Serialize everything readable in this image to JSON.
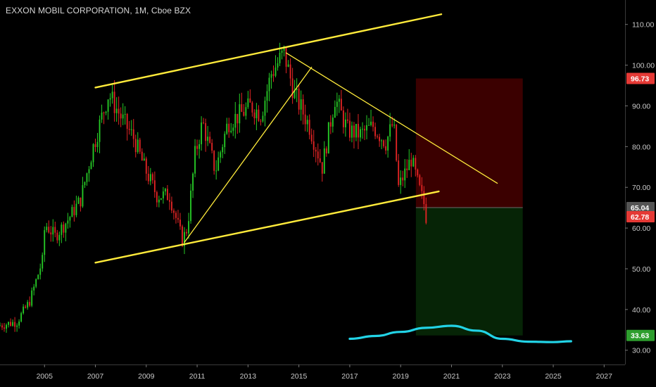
{
  "header": {
    "symbol_title": "EXXON MOBIL CORPORATION, 1M, Cboe BZX"
  },
  "chart_data": {
    "type": "candlestick",
    "title": "EXXON MOBIL CORPORATION, 1M, Cboe BZX",
    "xlabel": "",
    "ylabel": "",
    "x_ticks": [
      "2005",
      "2007",
      "2009",
      "2011",
      "2013",
      "2015",
      "2017",
      "2019",
      "2021",
      "2023",
      "2025",
      "2027"
    ],
    "y_ticks": [
      "30.00",
      "40.00",
      "50.00",
      "60.00",
      "70.00",
      "80.00",
      "90.00",
      "100.00",
      "110.00"
    ],
    "xlim": [
      2003.25,
      2027.6
    ],
    "ylim": [
      26.5,
      116
    ],
    "grid": false,
    "legend": "none",
    "price_path": [
      [
        2003.25,
        36.0
      ],
      [
        2004.0,
        37.0
      ],
      [
        2004.5,
        42.0
      ],
      [
        2005.0,
        52.0
      ],
      [
        2005.1,
        61.0
      ],
      [
        2005.5,
        58.0
      ],
      [
        2006.0,
        62.0
      ],
      [
        2006.5,
        67.0
      ],
      [
        2007.0,
        80.0
      ],
      [
        2007.6,
        93.0
      ],
      [
        2008.2,
        86.0
      ],
      [
        2008.6,
        82.0
      ],
      [
        2009.0,
        75.0
      ],
      [
        2009.5,
        68.0
      ],
      [
        2010.0,
        68.0
      ],
      [
        2010.5,
        57.0
      ],
      [
        2010.7,
        60.0
      ],
      [
        2011.0,
        78.0
      ],
      [
        2011.3,
        86.0
      ],
      [
        2011.8,
        74.0
      ],
      [
        2012.3,
        86.0
      ],
      [
        2012.8,
        88.0
      ],
      [
        2013.2,
        90.0
      ],
      [
        2013.6,
        88.0
      ],
      [
        2014.0,
        98.0
      ],
      [
        2014.5,
        103.0
      ],
      [
        2014.9,
        93.0
      ],
      [
        2015.5,
        85.0
      ],
      [
        2016.0,
        75.0
      ],
      [
        2016.5,
        92.0
      ],
      [
        2017.0,
        84.0
      ],
      [
        2017.5,
        83.0
      ],
      [
        2018.0,
        85.0
      ],
      [
        2018.5,
        81.0
      ],
      [
        2018.8,
        86.0
      ],
      [
        2019.0,
        70.0
      ],
      [
        2019.5,
        77.0
      ],
      [
        2019.8,
        70.0
      ],
      [
        2020.0,
        66.0
      ],
      [
        2020.05,
        62.78
      ]
    ],
    "trendlines": [
      {
        "name": "channel-upper",
        "color": "#ffeb3b",
        "width": 2.4,
        "points": [
          [
            2007.0,
            94.5
          ],
          [
            2020.6,
            112.5
          ]
        ]
      },
      {
        "name": "channel-lower",
        "color": "#ffeb3b",
        "width": 2.4,
        "points": [
          [
            2007.0,
            51.5
          ],
          [
            2020.5,
            69.0
          ]
        ]
      },
      {
        "name": "descending-resistance",
        "color": "#ffeb3b",
        "width": 1.3,
        "points": [
          [
            2014.5,
            103.0
          ],
          [
            2022.8,
            71.0
          ]
        ]
      },
      {
        "name": "rising-support",
        "color": "#ffeb3b",
        "width": 1.3,
        "points": [
          [
            2010.5,
            56.5
          ],
          [
            2015.5,
            99.5
          ]
        ]
      }
    ],
    "position": {
      "entry": 65.04,
      "stop": 96.73,
      "target": 33.63,
      "start_x": 2019.6,
      "end_x": 2023.8,
      "risk_color": "#3b0000",
      "reward_color": "#062406"
    },
    "indicator_curve": {
      "color": "#22d3e6",
      "points": [
        [
          2017.0,
          32.8
        ],
        [
          2018.0,
          33.5
        ],
        [
          2019.0,
          34.5
        ],
        [
          2020.0,
          35.5
        ],
        [
          2021.0,
          36.0
        ],
        [
          2022.0,
          34.8
        ],
        [
          2023.0,
          32.8
        ],
        [
          2024.0,
          32.1
        ],
        [
          2025.0,
          32.0
        ],
        [
          2025.7,
          32.2
        ]
      ]
    },
    "price_tags": [
      {
        "label": "96.73",
        "value": 96.73,
        "color": "#e53935"
      },
      {
        "label": "65.04",
        "value": 65.04,
        "color": "#555555"
      },
      {
        "label": "62.78",
        "value": 62.78,
        "color": "#e53935"
      },
      {
        "label": "33.63",
        "value": 33.63,
        "color": "#2e9e2e"
      }
    ],
    "colors": {
      "up": "#26c926",
      "down": "#e02424",
      "axis_text": "#c8c8c8",
      "axis_line": "#3a3a3a"
    }
  }
}
